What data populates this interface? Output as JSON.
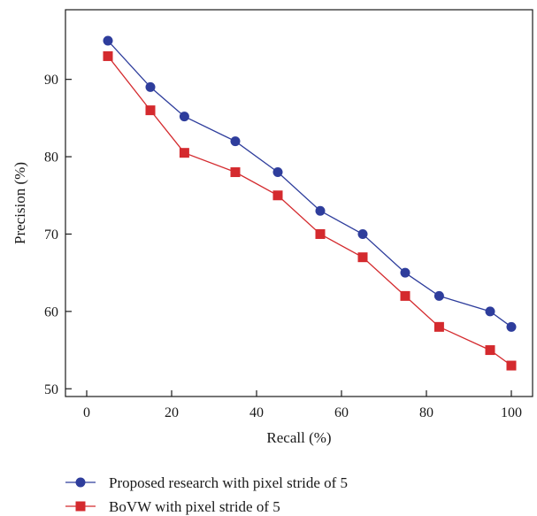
{
  "chart_data": {
    "type": "line",
    "xlabel": "Recall (%)",
    "ylabel": "Precision (%)",
    "xlim": [
      -5,
      105
    ],
    "ylim": [
      49,
      99
    ],
    "xticks": [
      0,
      20,
      40,
      60,
      80,
      100
    ],
    "yticks": [
      50,
      60,
      70,
      80,
      90
    ],
    "grid": false,
    "legend_position": "bottom",
    "series": [
      {
        "name": "Proposed research with pixel stride of 5",
        "color": "#2e3d9c",
        "marker": "circle",
        "x": [
          5,
          15,
          23,
          35,
          45,
          55,
          65,
          75,
          83,
          95,
          100
        ],
        "y": [
          95,
          89,
          85.2,
          82,
          78,
          73,
          70,
          65,
          62,
          60,
          58
        ]
      },
      {
        "name": "BoVW with pixel stride of 5",
        "color": "#d42a2e",
        "marker": "square",
        "x": [
          5,
          15,
          23,
          35,
          45,
          55,
          65,
          75,
          83,
          95,
          100
        ],
        "y": [
          93,
          86,
          80.5,
          78,
          75,
          70,
          67,
          62,
          58,
          55,
          53
        ]
      }
    ]
  }
}
